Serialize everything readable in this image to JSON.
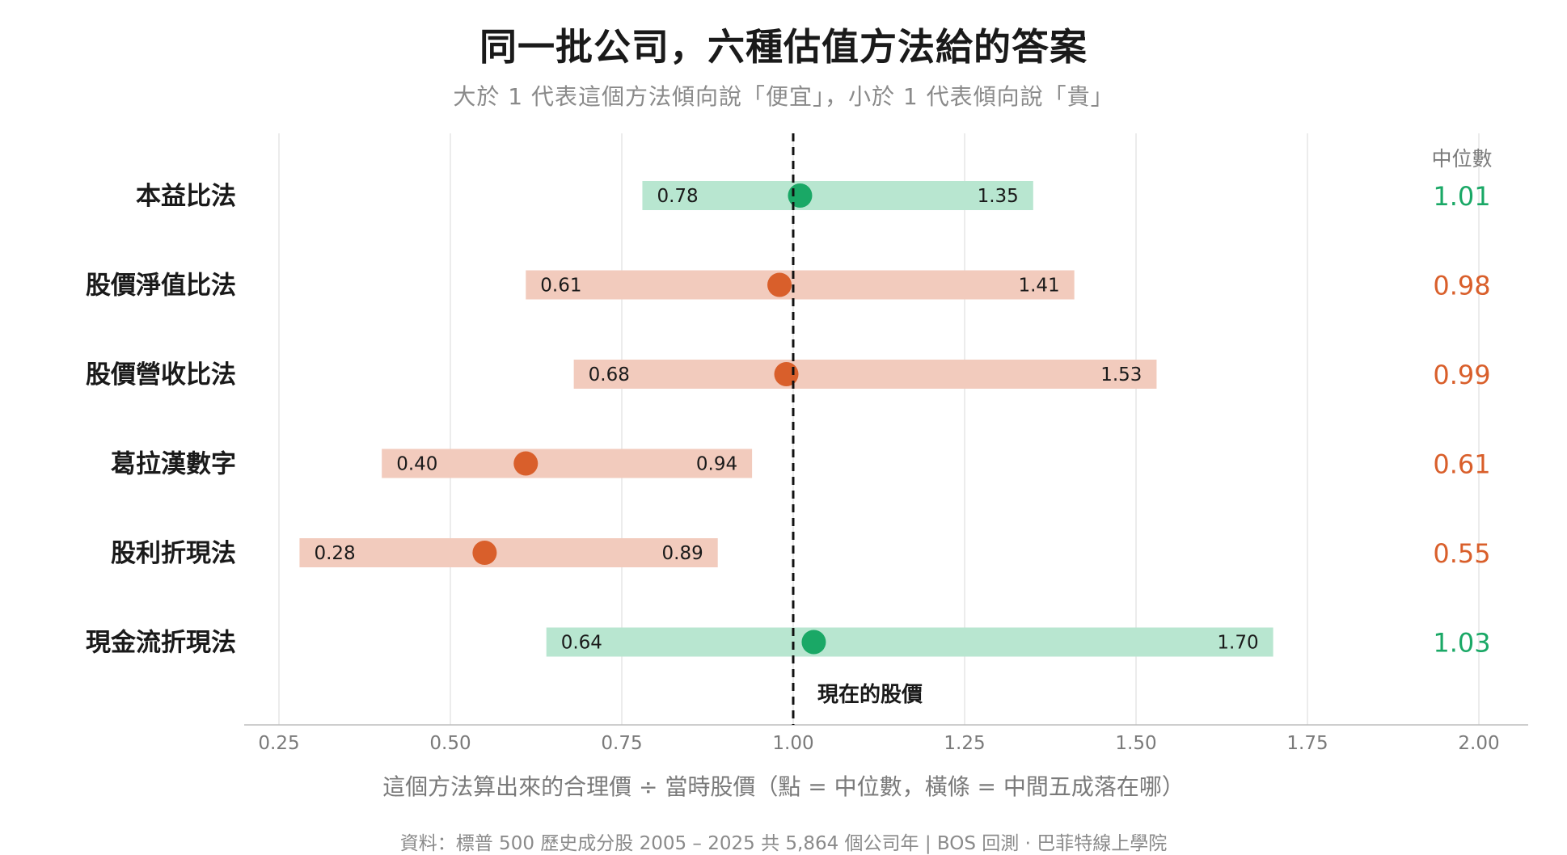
{
  "chart_data": {
    "type": "range-dot",
    "title": "同一批公司，六種估值方法給的答案",
    "subtitle": "大於 1 代表這個方法傾向說「便宜」，小於 1 代表傾向說「貴」",
    "xlabel": "這個方法算出來的合理價 ÷ 當時股價（點 = 中位數，橫條 = 中間五成落在哪）",
    "xlim": [
      0.2,
      2.06
    ],
    "xticks": [
      "0.25",
      "0.50",
      "0.75",
      "1.00",
      "1.25",
      "1.50",
      "1.75",
      "2.00"
    ],
    "grid": true,
    "reference_line": {
      "x": 1.0,
      "label": "現在的股價"
    },
    "median_header": "中位數",
    "colors": {
      "above": "#1aa866",
      "below": "#d95f2b",
      "above_bar": "#b8e6d0",
      "below_bar": "#f2cbbd"
    },
    "series": [
      {
        "name": "本益比法",
        "low": 0.78,
        "median": 1.01,
        "high": 1.35,
        "low_label": "0.78",
        "high_label": "1.35",
        "median_label": "1.01"
      },
      {
        "name": "股價淨值比法",
        "low": 0.61,
        "median": 0.98,
        "high": 1.41,
        "low_label": "0.61",
        "high_label": "1.41",
        "median_label": "0.98"
      },
      {
        "name": "股價營收比法",
        "low": 0.68,
        "median": 0.99,
        "high": 1.53,
        "low_label": "0.68",
        "high_label": "1.53",
        "median_label": "0.99"
      },
      {
        "name": "葛拉漢數字",
        "low": 0.4,
        "median": 0.61,
        "high": 0.94,
        "low_label": "0.40",
        "high_label": "0.94",
        "median_label": "0.61"
      },
      {
        "name": "股利折現法",
        "low": 0.28,
        "median": 0.55,
        "high": 0.89,
        "low_label": "0.28",
        "high_label": "0.89",
        "median_label": "0.55"
      },
      {
        "name": "現金流折現法",
        "low": 0.64,
        "median": 1.03,
        "high": 1.7,
        "low_label": "0.64",
        "high_label": "1.70",
        "median_label": "1.03"
      }
    ]
  },
  "source": "資料：標普 500 歷史成分股 2005 – 2025 共 5,864 個公司年 | BOS 回測 · 巴菲特線上學院"
}
